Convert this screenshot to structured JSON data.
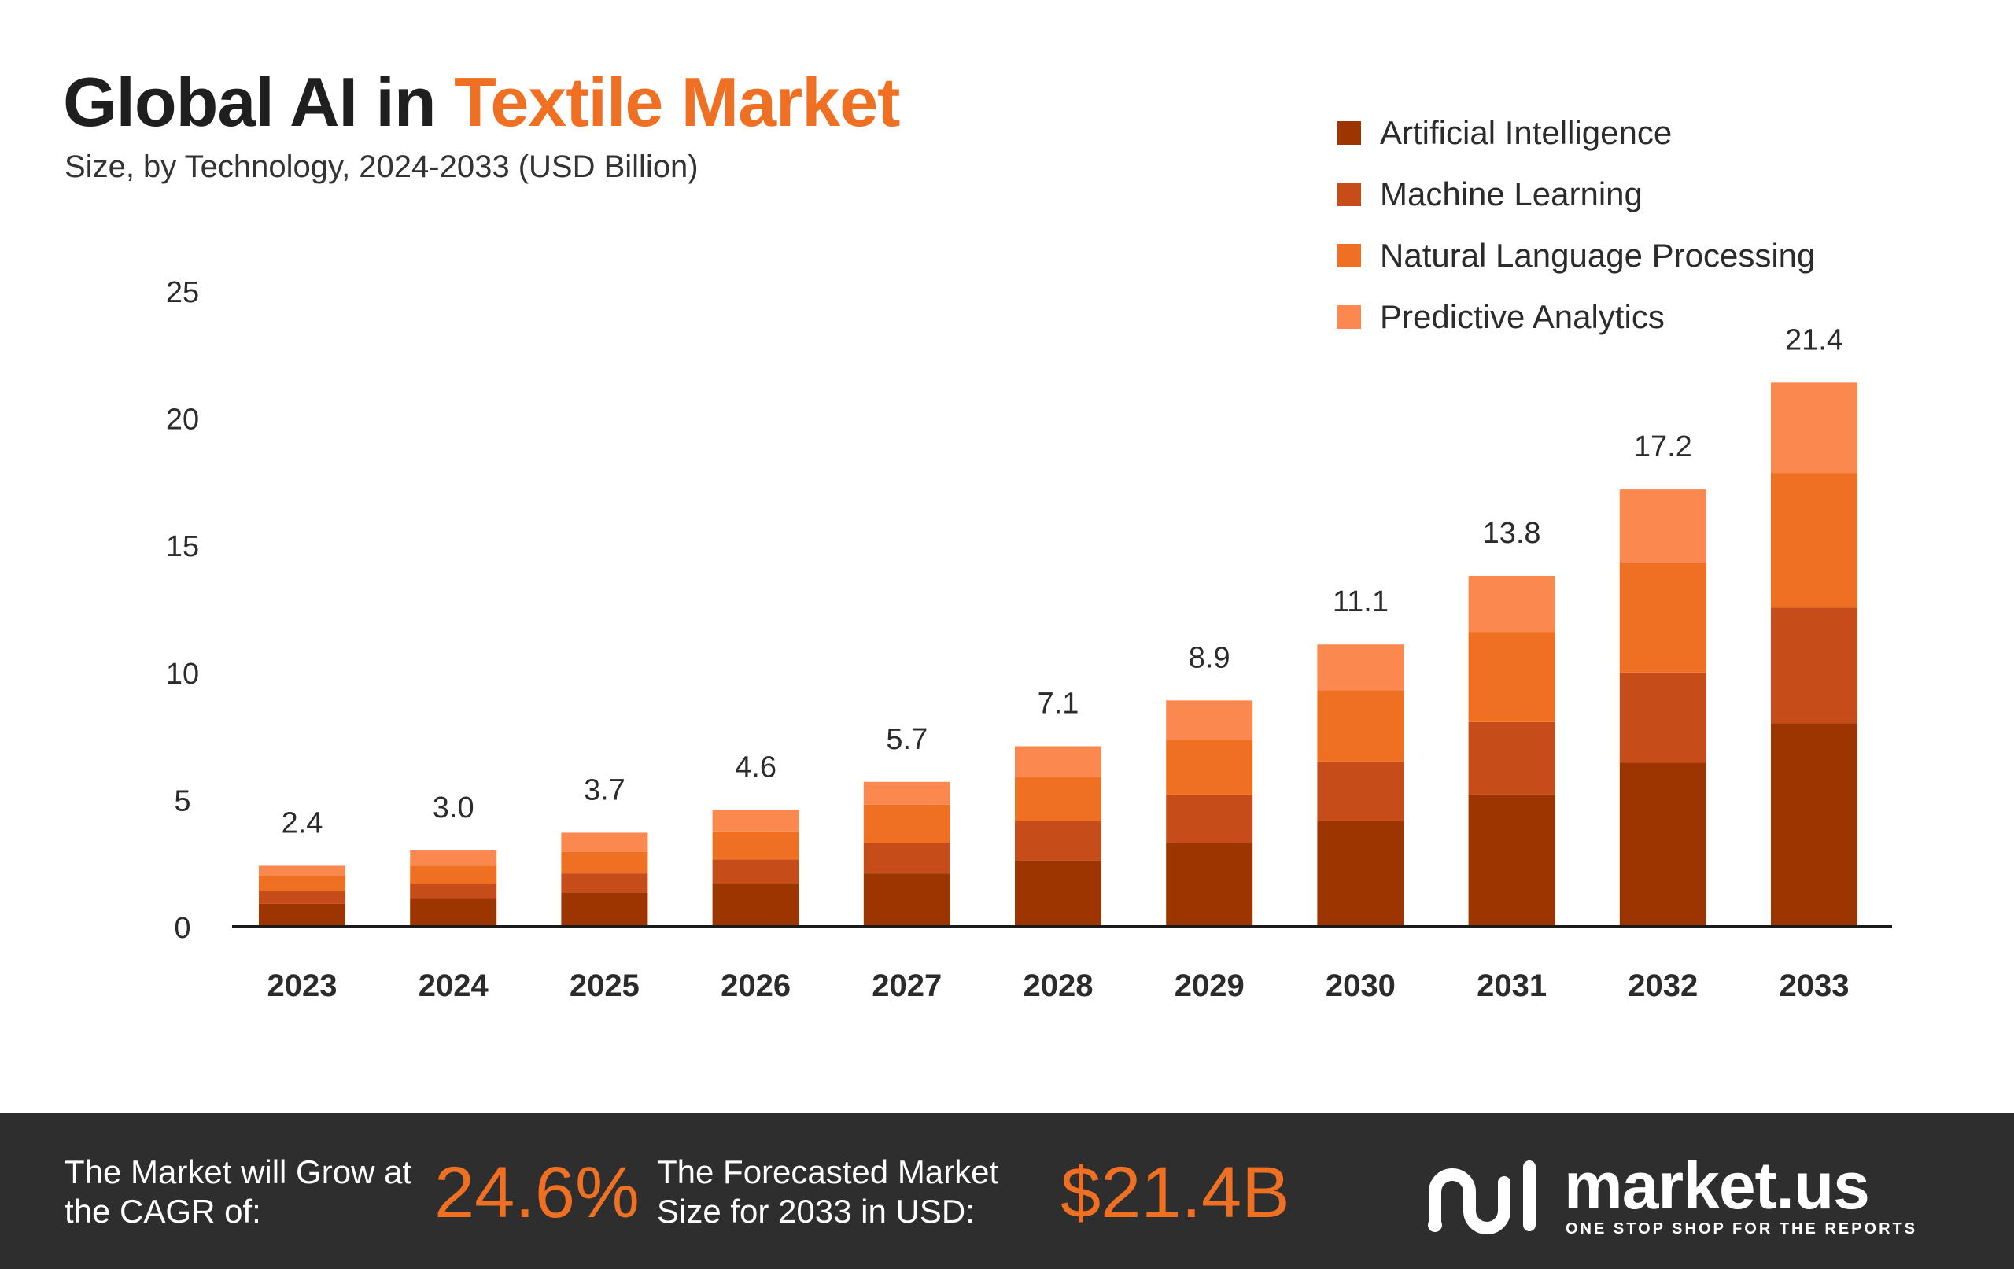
{
  "header": {
    "title_part1": "Global AI in ",
    "title_part2": "Textile Market",
    "subtitle": "Size, by Technology, 2024-2033 (USD Billion)"
  },
  "legend": [
    {
      "label": "Artificial Intelligence",
      "color": "#9c3500"
    },
    {
      "label": "Machine Learning",
      "color": "#c64d1a"
    },
    {
      "label": "Natural Language Processing",
      "color": "#f07023"
    },
    {
      "label": "Predictive Analytics",
      "color": "#fa884f"
    }
  ],
  "chart_data": {
    "type": "bar",
    "stacked": true,
    "title": "Global AI in Textile Market",
    "subtitle": "Size, by Technology, 2024-2033 (USD Billion)",
    "xlabel": "",
    "ylabel": "",
    "ylim": [
      0,
      25
    ],
    "yticks": [
      0,
      5,
      10,
      15,
      20,
      25
    ],
    "grid": false,
    "legend_position": "top-right",
    "categories": [
      "2023",
      "2024",
      "2025",
      "2026",
      "2027",
      "2028",
      "2029",
      "2030",
      "2031",
      "2032",
      "2033"
    ],
    "totals": [
      2.4,
      3.0,
      3.7,
      4.6,
      5.7,
      7.1,
      8.9,
      11.1,
      13.8,
      17.2,
      21.4
    ],
    "total_labels": [
      "2.4",
      "3.0",
      "3.7",
      "4.6",
      "5.7",
      "7.1",
      "8.9",
      "11.1",
      "13.8",
      "17.2",
      "21.4"
    ],
    "series": [
      {
        "name": "Artificial Intelligence",
        "color": "#9c3500",
        "values": [
          0.9,
          1.1,
          1.35,
          1.7,
          2.1,
          2.6,
          3.3,
          4.15,
          5.2,
          6.45,
          8.0
        ]
      },
      {
        "name": "Machine Learning",
        "color": "#c64d1a",
        "values": [
          0.5,
          0.6,
          0.75,
          0.95,
          1.2,
          1.55,
          1.9,
          2.35,
          2.85,
          3.55,
          4.55
        ]
      },
      {
        "name": "Natural Language Processing",
        "color": "#f07023",
        "values": [
          0.6,
          0.7,
          0.85,
          1.1,
          1.5,
          1.75,
          2.15,
          2.8,
          3.55,
          4.3,
          5.3
        ]
      },
      {
        "name": "Predictive Analytics",
        "color": "#fa884f",
        "values": [
          0.4,
          0.6,
          0.75,
          0.85,
          0.9,
          1.2,
          1.55,
          1.8,
          2.2,
          2.9,
          3.55
        ]
      }
    ]
  },
  "footer": {
    "cagr_label": "The Market will Grow at the CAGR of:",
    "cagr_value": "24.6%",
    "size_label": "The Forecasted Market Size for 2033 in USD:",
    "size_value": "$21.4B",
    "brand_name": "market.us",
    "brand_tagline": "ONE STOP SHOP FOR THE REPORTS",
    "bg_color": "#2e2e2e",
    "accent_color": "#f07023"
  }
}
